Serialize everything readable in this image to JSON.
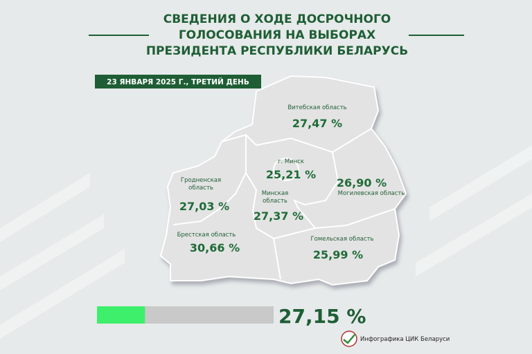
{
  "header": {
    "title_lines": [
      "СВЕДЕНИЯ О ХОДЕ ДОСРОЧНОГО",
      "ГОЛОСОВАНИЯ НА ВЫБОРАХ",
      "ПРЕЗИДЕНТА РЕСПУБЛИКИ БЕЛАРУСЬ"
    ]
  },
  "date_label": "23 ЯНВАРЯ 2025 Г., ТРЕТИЙ ДЕНЬ",
  "regions": [
    {
      "name_lines": [
        "Витебская область"
      ],
      "value": "27,47 %"
    },
    {
      "name_lines": [
        "г. Минск"
      ],
      "value": "25,21 %"
    },
    {
      "name_lines": [
        "Гродненская",
        "область"
      ],
      "value": "27,03 %"
    },
    {
      "name_lines": [
        "Минская",
        "область"
      ],
      "value": "27,37 %"
    },
    {
      "name_lines": [
        "Могилевская область"
      ],
      "value": "26,90 %"
    },
    {
      "name_lines": [
        "Брестская область"
      ],
      "value": "30,66 %"
    },
    {
      "name_lines": [
        "Гомельская область"
      ],
      "value": "25,99 %"
    }
  ],
  "total": {
    "value": 27.15,
    "label": "27,15 %",
    "xlim": [
      0,
      100
    ]
  },
  "footer": {
    "credit": "Инфографика ЦИК Беларуси"
  }
}
